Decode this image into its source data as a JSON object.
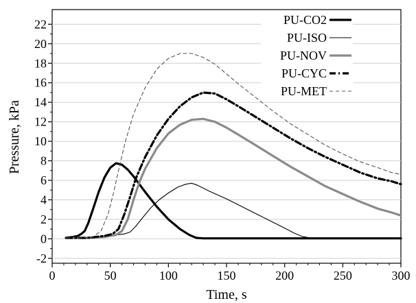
{
  "chart_data": {
    "type": "line",
    "xlabel": "Time, s",
    "ylabel": "Pressure, kPa",
    "xlim": [
      0,
      300
    ],
    "ylim": [
      -2.5,
      23.5
    ],
    "xticks": [
      0,
      50,
      100,
      150,
      200,
      250,
      300
    ],
    "yticks": [
      -2,
      0,
      2,
      4,
      6,
      8,
      10,
      12,
      14,
      16,
      18,
      20,
      22
    ],
    "grid": "horizontal",
    "legend_position": "top-right",
    "series": [
      {
        "name": "PU-CO2",
        "color": "#000000",
        "style": "solid",
        "weight": "thick",
        "points": [
          [
            12,
            0.1
          ],
          [
            18,
            0.2
          ],
          [
            22,
            0.3
          ],
          [
            25,
            0.5
          ],
          [
            28,
            0.8
          ],
          [
            31,
            1.6
          ],
          [
            35,
            3.0
          ],
          [
            40,
            4.8
          ],
          [
            45,
            6.3
          ],
          [
            50,
            7.3
          ],
          [
            55,
            7.75
          ],
          [
            60,
            7.6
          ],
          [
            65,
            7.1
          ],
          [
            70,
            6.4
          ],
          [
            75,
            5.6
          ],
          [
            80,
            4.8
          ],
          [
            90,
            3.3
          ],
          [
            100,
            2.0
          ],
          [
            110,
            1.0
          ],
          [
            118,
            0.4
          ],
          [
            124,
            0.1
          ],
          [
            130,
            0.05
          ],
          [
            150,
            0.05
          ],
          [
            200,
            0.05
          ],
          [
            250,
            0.05
          ],
          [
            300,
            0.05
          ]
        ]
      },
      {
        "name": "PU-ISO",
        "color": "#000000",
        "style": "solid",
        "weight": "thin",
        "points": [
          [
            12,
            0.1
          ],
          [
            30,
            0.1
          ],
          [
            45,
            0.2
          ],
          [
            55,
            0.4
          ],
          [
            62,
            0.5
          ],
          [
            67,
            0.7
          ],
          [
            72,
            1.3
          ],
          [
            78,
            2.2
          ],
          [
            85,
            3.2
          ],
          [
            92,
            4.0
          ],
          [
            100,
            4.7
          ],
          [
            108,
            5.3
          ],
          [
            115,
            5.6
          ],
          [
            120,
            5.7
          ],
          [
            125,
            5.5
          ],
          [
            135,
            4.9
          ],
          [
            150,
            4.1
          ],
          [
            160,
            3.5
          ],
          [
            170,
            2.9
          ],
          [
            180,
            2.3
          ],
          [
            190,
            1.7
          ],
          [
            200,
            1.1
          ],
          [
            208,
            0.6
          ],
          [
            215,
            0.25
          ],
          [
            222,
            0.1
          ],
          [
            235,
            0.05
          ],
          [
            260,
            0.05
          ],
          [
            300,
            0.05
          ]
        ]
      },
      {
        "name": "PU-NOV",
        "color": "#8a8a8a",
        "style": "solid",
        "weight": "thick",
        "points": [
          [
            12,
            0.1
          ],
          [
            30,
            0.1
          ],
          [
            45,
            0.2
          ],
          [
            55,
            0.4
          ],
          [
            60,
            0.8
          ],
          [
            65,
            2.0
          ],
          [
            70,
            4.0
          ],
          [
            75,
            5.8
          ],
          [
            80,
            7.2
          ],
          [
            90,
            9.3
          ],
          [
            100,
            10.8
          ],
          [
            110,
            11.7
          ],
          [
            120,
            12.2
          ],
          [
            130,
            12.3
          ],
          [
            140,
            12.0
          ],
          [
            150,
            11.4
          ],
          [
            160,
            10.7
          ],
          [
            175,
            9.6
          ],
          [
            190,
            8.5
          ],
          [
            205,
            7.4
          ],
          [
            220,
            6.4
          ],
          [
            235,
            5.4
          ],
          [
            250,
            4.6
          ],
          [
            265,
            3.8
          ],
          [
            280,
            3.1
          ],
          [
            292,
            2.7
          ],
          [
            300,
            2.4
          ]
        ]
      },
      {
        "name": "PU-CYC",
        "color": "#000000",
        "style": "dashdot",
        "weight": "thick",
        "points": [
          [
            12,
            0.1
          ],
          [
            30,
            0.1
          ],
          [
            45,
            0.3
          ],
          [
            52,
            0.5
          ],
          [
            57,
            1.0
          ],
          [
            62,
            2.5
          ],
          [
            67,
            4.3
          ],
          [
            72,
            6.2
          ],
          [
            80,
            8.4
          ],
          [
            90,
            10.6
          ],
          [
            100,
            12.3
          ],
          [
            110,
            13.6
          ],
          [
            120,
            14.5
          ],
          [
            130,
            15.0
          ],
          [
            140,
            14.9
          ],
          [
            150,
            14.3
          ],
          [
            160,
            13.6
          ],
          [
            175,
            12.5
          ],
          [
            190,
            11.4
          ],
          [
            205,
            10.3
          ],
          [
            220,
            9.3
          ],
          [
            235,
            8.4
          ],
          [
            250,
            7.6
          ],
          [
            265,
            6.8
          ],
          [
            280,
            6.2
          ],
          [
            292,
            5.9
          ],
          [
            300,
            5.6
          ]
        ]
      },
      {
        "name": "PU-MET",
        "color": "#555555",
        "style": "dashed",
        "weight": "thin",
        "points": [
          [
            12,
            0.1
          ],
          [
            25,
            0.1
          ],
          [
            35,
            0.2
          ],
          [
            42,
            0.8
          ],
          [
            48,
            2.5
          ],
          [
            53,
            4.8
          ],
          [
            58,
            7.5
          ],
          [
            63,
            10.0
          ],
          [
            70,
            12.8
          ],
          [
            80,
            15.5
          ],
          [
            90,
            17.4
          ],
          [
            100,
            18.5
          ],
          [
            110,
            19.0
          ],
          [
            120,
            19.0
          ],
          [
            130,
            18.6
          ],
          [
            140,
            17.9
          ],
          [
            150,
            16.9
          ],
          [
            160,
            15.9
          ],
          [
            175,
            14.5
          ],
          [
            190,
            13.1
          ],
          [
            205,
            11.8
          ],
          [
            220,
            10.7
          ],
          [
            235,
            9.6
          ],
          [
            250,
            8.7
          ],
          [
            265,
            7.9
          ],
          [
            280,
            7.3
          ],
          [
            292,
            6.8
          ],
          [
            300,
            6.6
          ]
        ]
      }
    ]
  }
}
